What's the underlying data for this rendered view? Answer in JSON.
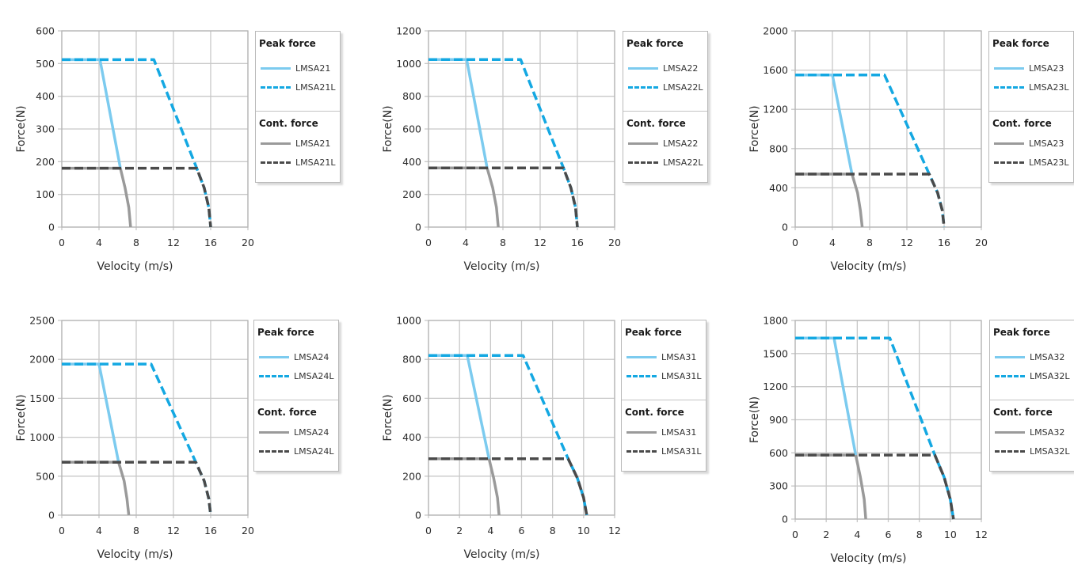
{
  "legend_group_titles": {
    "peak": "Peak force",
    "cont": "Cont. force"
  },
  "colors": {
    "peak_solid": "#7ccbef",
    "peak_dashed": "#14a8e2",
    "cont_solid": "#9a9a9a",
    "cont_dashed": "#4a4a4a",
    "grid": "#c8c8c8"
  },
  "chart_data": [
    {
      "type": "line",
      "title": "",
      "xlabel": "Velocity (m/s)",
      "ylabel": "Force(N)",
      "xlim": [
        0,
        20
      ],
      "ylim": [
        0,
        600
      ],
      "xticks": [
        0,
        4,
        8,
        12,
        16,
        20
      ],
      "yticks": [
        0,
        100,
        200,
        300,
        400,
        500,
        600
      ],
      "grid": true,
      "legend_position": "right",
      "series": [
        {
          "name": "LMSA21",
          "group": "Peak force",
          "style": "solid",
          "x": [
            0,
            4.1,
            6.3
          ],
          "y": [
            512,
            512,
            180
          ]
        },
        {
          "name": "LMSA21L",
          "group": "Peak force",
          "style": "dashed",
          "x": [
            0,
            9.9,
            14.5,
            15.3,
            15.8,
            16.0
          ],
          "y": [
            512,
            512,
            180,
            120,
            60,
            0
          ]
        },
        {
          "name": "LMSA21",
          "group": "Cont. force",
          "style": "solid",
          "x": [
            0,
            6.3,
            6.8,
            7.2,
            7.4
          ],
          "y": [
            180,
            180,
            120,
            60,
            0
          ]
        },
        {
          "name": "LMSA21L",
          "group": "Cont. force",
          "style": "dashed",
          "x": [
            0,
            14.5,
            15.3,
            15.8,
            16.0
          ],
          "y": [
            180,
            180,
            120,
            60,
            0
          ]
        }
      ]
    },
    {
      "type": "line",
      "title": "",
      "xlabel": "Velocity (m/s)",
      "ylabel": "Force(N)",
      "xlim": [
        0,
        20
      ],
      "ylim": [
        0,
        1200
      ],
      "xticks": [
        0,
        4,
        8,
        12,
        16,
        20
      ],
      "yticks": [
        0,
        200,
        400,
        600,
        800,
        1000,
        1200
      ],
      "grid": true,
      "legend_position": "right",
      "series": [
        {
          "name": "LMSA22",
          "group": "Peak force",
          "style": "solid",
          "x": [
            0,
            4.1,
            6.3
          ],
          "y": [
            1025,
            1025,
            362
          ]
        },
        {
          "name": "LMSA22L",
          "group": "Peak force",
          "style": "dashed",
          "x": [
            0,
            9.9,
            14.5,
            15.3,
            15.8,
            16.0
          ],
          "y": [
            1025,
            1025,
            362,
            240,
            120,
            0
          ]
        },
        {
          "name": "LMSA22",
          "group": "Cont. force",
          "style": "solid",
          "x": [
            0,
            6.3,
            6.9,
            7.3,
            7.5
          ],
          "y": [
            362,
            362,
            240,
            120,
            0
          ]
        },
        {
          "name": "LMSA22L",
          "group": "Cont. force",
          "style": "dashed",
          "x": [
            0,
            14.5,
            15.3,
            15.8,
            16.0
          ],
          "y": [
            362,
            362,
            240,
            120,
            0
          ]
        }
      ]
    },
    {
      "type": "line",
      "title": "",
      "xlabel": "Velocity (m/s)",
      "ylabel": "Force(N)",
      "xlim": [
        0,
        20
      ],
      "ylim": [
        0,
        2000
      ],
      "xticks": [
        0,
        4,
        8,
        12,
        16,
        20
      ],
      "yticks": [
        0,
        400,
        800,
        1200,
        1600,
        2000
      ],
      "grid": true,
      "legend_position": "right",
      "series": [
        {
          "name": "LMSA23",
          "group": "Peak force",
          "style": "solid",
          "x": [
            0,
            4.0,
            6.1
          ],
          "y": [
            1550,
            1550,
            540
          ]
        },
        {
          "name": "LMSA23L",
          "group": "Peak force",
          "style": "dashed",
          "x": [
            0,
            9.6,
            14.4,
            15.3,
            15.8,
            16.0
          ],
          "y": [
            1550,
            1550,
            540,
            350,
            170,
            0
          ]
        },
        {
          "name": "LMSA23",
          "group": "Cont. force",
          "style": "solid",
          "x": [
            0,
            6.1,
            6.7,
            7.0,
            7.2
          ],
          "y": [
            540,
            540,
            350,
            170,
            0
          ]
        },
        {
          "name": "LMSA23L",
          "group": "Cont. force",
          "style": "dashed",
          "x": [
            0,
            14.4,
            15.3,
            15.8,
            16.0
          ],
          "y": [
            540,
            540,
            350,
            170,
            0
          ]
        }
      ]
    },
    {
      "type": "line",
      "title": "",
      "xlabel": "Velocity (m/s)",
      "ylabel": "Force(N)",
      "xlim": [
        0,
        20
      ],
      "ylim": [
        0,
        2500
      ],
      "xticks": [
        0,
        4,
        8,
        12,
        16,
        20
      ],
      "yticks": [
        0,
        500,
        1000,
        1500,
        2000,
        2500
      ],
      "grid": true,
      "legend_position": "right",
      "series": [
        {
          "name": "LMSA24",
          "group": "Peak force",
          "style": "solid",
          "x": [
            0,
            4.0,
            6.1
          ],
          "y": [
            1940,
            1940,
            680
          ]
        },
        {
          "name": "LMSA24L",
          "group": "Peak force",
          "style": "dashed",
          "x": [
            0,
            9.6,
            14.4,
            15.3,
            15.8,
            16.0
          ],
          "y": [
            1940,
            1940,
            680,
            440,
            210,
            0
          ]
        },
        {
          "name": "LMSA24",
          "group": "Cont. force",
          "style": "solid",
          "x": [
            0,
            6.1,
            6.7,
            7.0,
            7.2
          ],
          "y": [
            680,
            680,
            440,
            210,
            0
          ]
        },
        {
          "name": "LMSA24L",
          "group": "Cont. force",
          "style": "dashed",
          "x": [
            0,
            14.4,
            15.3,
            15.8,
            16.0
          ],
          "y": [
            680,
            680,
            440,
            210,
            0
          ]
        }
      ]
    },
    {
      "type": "line",
      "title": "",
      "xlabel": "Velocity (m/s)",
      "ylabel": "Force(N)",
      "xlim": [
        0,
        12
      ],
      "ylim": [
        0,
        1000
      ],
      "xticks": [
        0,
        2,
        4,
        6,
        8,
        10,
        12
      ],
      "yticks": [
        0,
        200,
        400,
        600,
        800,
        1000
      ],
      "grid": true,
      "legend_position": "right",
      "series": [
        {
          "name": "LMSA31",
          "group": "Peak force",
          "style": "solid",
          "x": [
            0,
            2.5,
            3.9
          ],
          "y": [
            820,
            820,
            290
          ]
        },
        {
          "name": "LMSA31L",
          "group": "Peak force",
          "style": "dashed",
          "x": [
            0,
            6.1,
            9.0,
            9.6,
            10.0,
            10.2
          ],
          "y": [
            820,
            820,
            290,
            190,
            90,
            0
          ]
        },
        {
          "name": "LMSA31",
          "group": "Cont. force",
          "style": "solid",
          "x": [
            0,
            3.9,
            4.2,
            4.45,
            4.55
          ],
          "y": [
            290,
            290,
            190,
            90,
            0
          ]
        },
        {
          "name": "LMSA31L",
          "group": "Cont. force",
          "style": "dashed",
          "x": [
            0,
            9.0,
            9.6,
            10.0,
            10.2
          ],
          "y": [
            290,
            290,
            190,
            90,
            0
          ]
        }
      ]
    },
    {
      "type": "line",
      "title": "",
      "xlabel": "Velocity (m/s)",
      "ylabel": "Force(N)",
      "xlim": [
        0,
        12
      ],
      "ylim": [
        0,
        1800
      ],
      "xticks": [
        0,
        2,
        4,
        6,
        8,
        10,
        12
      ],
      "yticks": [
        0,
        300,
        600,
        900,
        1200,
        1500,
        1800
      ],
      "grid": true,
      "legend_position": "right",
      "series": [
        {
          "name": "LMSA32",
          "group": "Peak force",
          "style": "solid",
          "x": [
            0,
            2.5,
            3.9
          ],
          "y": [
            1640,
            1640,
            580
          ]
        },
        {
          "name": "LMSA32L",
          "group": "Peak force",
          "style": "dashed",
          "x": [
            0,
            6.1,
            9.0,
            9.6,
            10.0,
            10.2
          ],
          "y": [
            1640,
            1640,
            580,
            380,
            180,
            0
          ]
        },
        {
          "name": "LMSA32",
          "group": "Cont. force",
          "style": "solid",
          "x": [
            0,
            3.9,
            4.2,
            4.45,
            4.55
          ],
          "y": [
            580,
            580,
            380,
            180,
            0
          ]
        },
        {
          "name": "LMSA32L",
          "group": "Cont. force",
          "style": "dashed",
          "x": [
            0,
            9.0,
            9.6,
            10.0,
            10.2
          ],
          "y": [
            580,
            580,
            380,
            180,
            0
          ]
        }
      ]
    }
  ]
}
